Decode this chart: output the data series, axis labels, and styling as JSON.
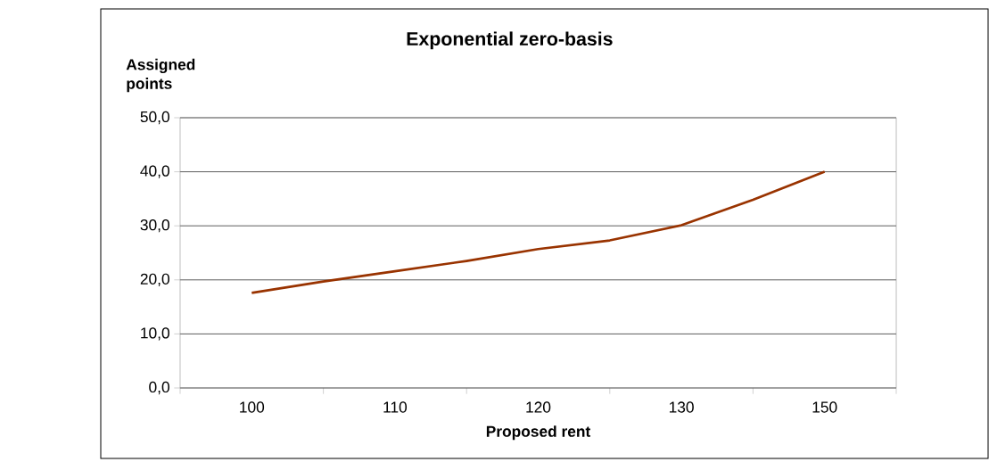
{
  "chart_data": {
    "type": "line",
    "title": "Exponential zero-basis",
    "xlabel": "Proposed rent",
    "ylabel": "Assigned points",
    "categories": [
      "100",
      null,
      "110",
      null,
      "120",
      null,
      "130",
      null,
      "150"
    ],
    "series": [
      {
        "color": "#993300",
        "values": [
          17.6,
          19.7,
          21.6,
          23.5,
          25.7,
          27.3,
          30.1,
          34.8,
          40.0
        ]
      }
    ],
    "ylim": [
      0,
      50
    ],
    "yticks": [
      {
        "value": 0,
        "label": "0,0"
      },
      {
        "value": 10,
        "label": "10,0"
      },
      {
        "value": 20,
        "label": "20,0"
      },
      {
        "value": 30,
        "label": "30,0"
      },
      {
        "value": 40,
        "label": "40,0"
      },
      {
        "value": 50,
        "label": "50,0"
      }
    ],
    "grid": "y"
  }
}
